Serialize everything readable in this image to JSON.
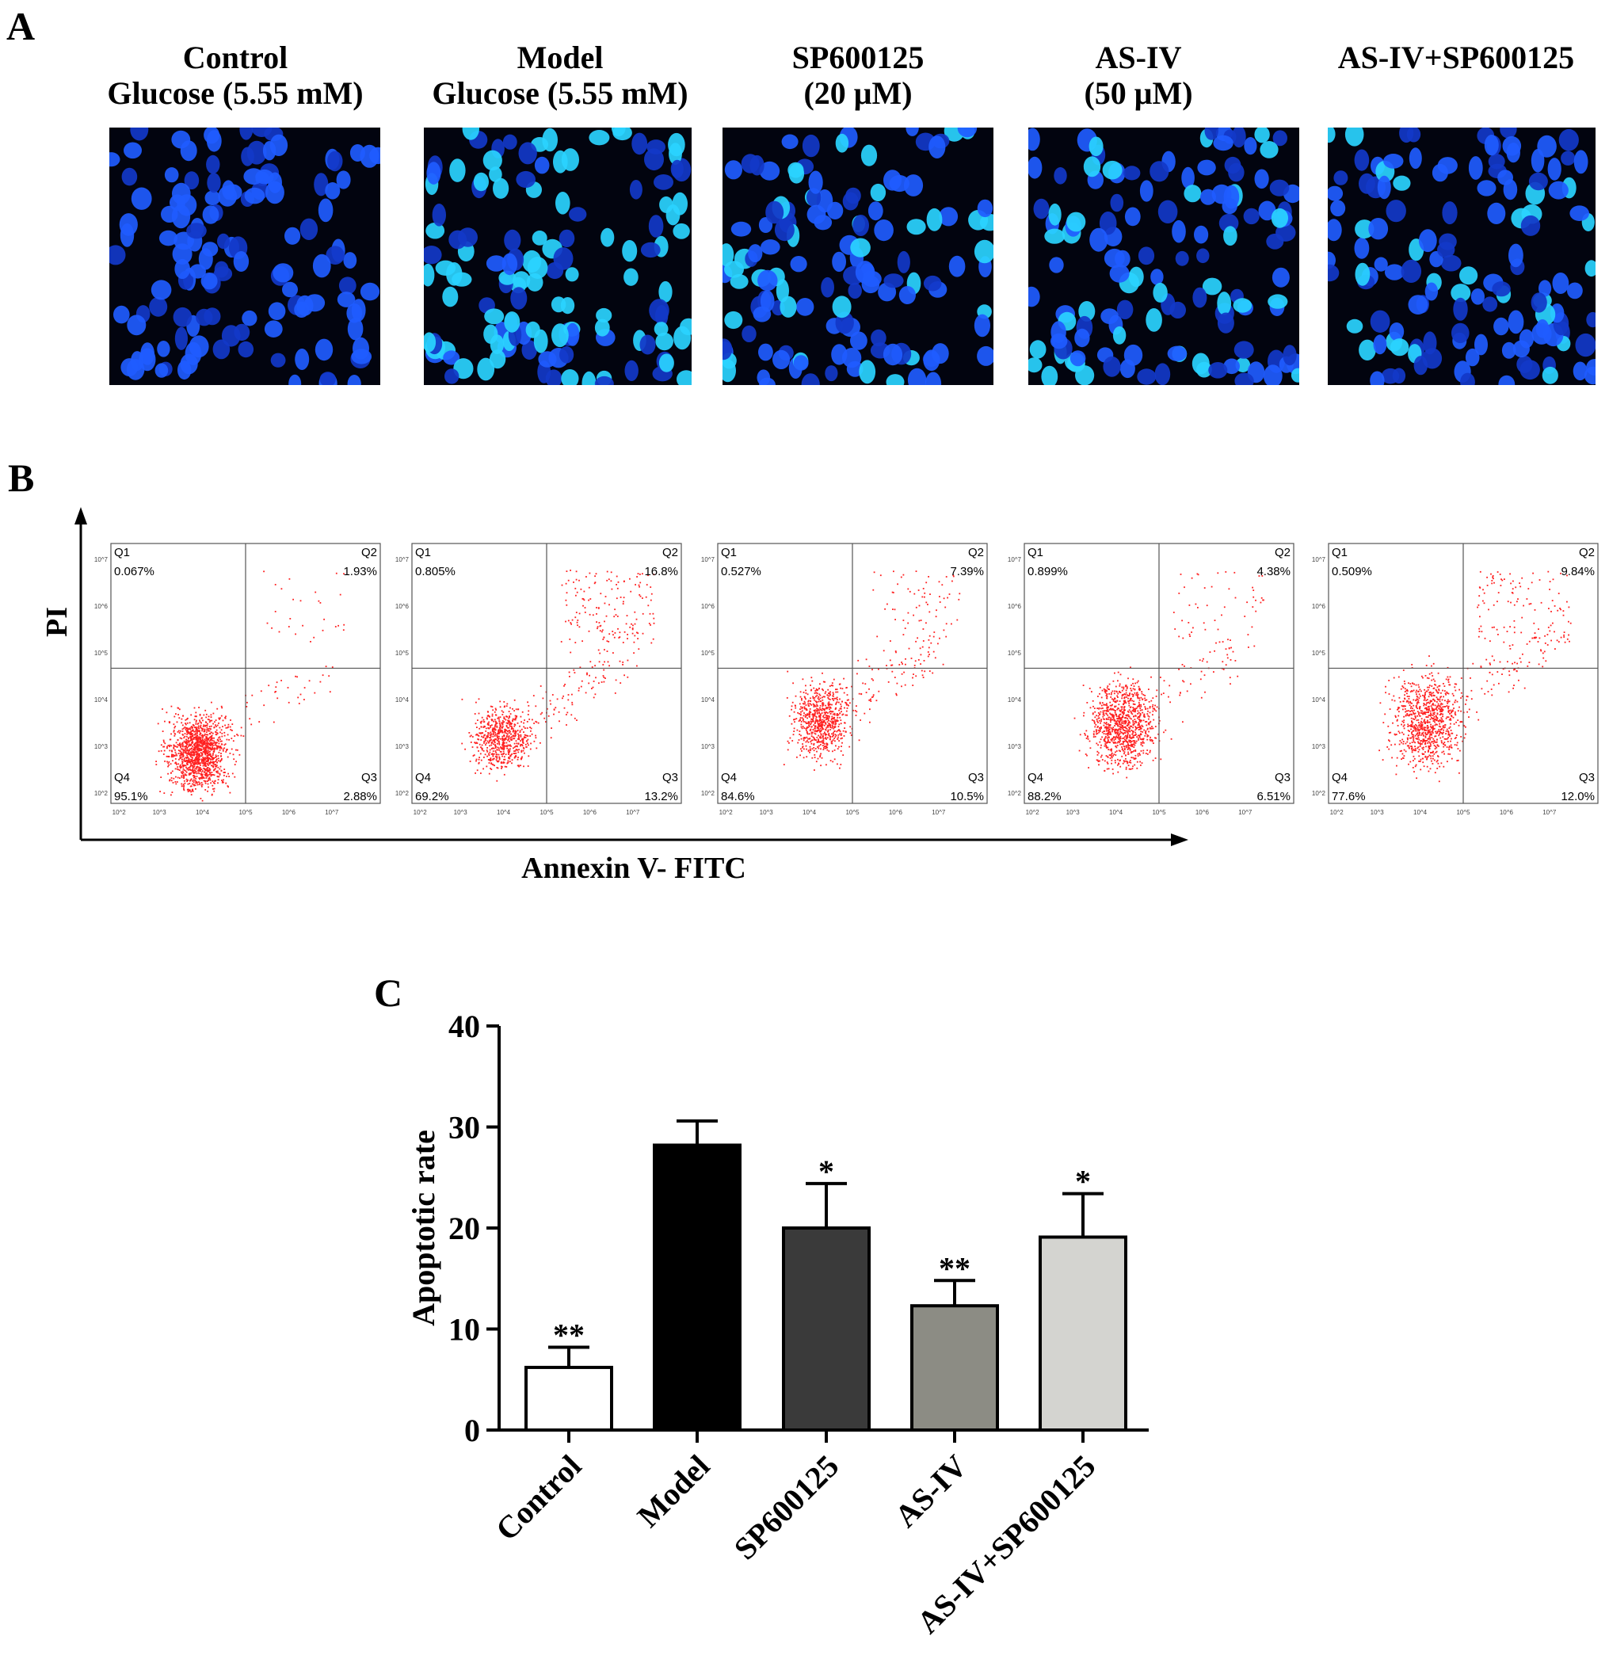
{
  "panel_a": {
    "letter": "A",
    "columns": [
      {
        "line1": "Control",
        "line2": "Glucose (5.55 mM)"
      },
      {
        "line1": "Model",
        "line2": "Glucose (5.55 mM)"
      },
      {
        "line1": "SP600125",
        "line2": "(20 μM)"
      },
      {
        "line1": "AS-IV",
        "line2": "(50 μM)"
      },
      {
        "line1": "AS-IV+SP600125",
        "line2": ""
      }
    ]
  },
  "panel_b": {
    "letter": "B",
    "y_axis_label": "PI",
    "x_axis_label": "Annexin V- FITC",
    "plots": [
      {
        "q1_label": "Q1",
        "q1": "0.067%",
        "q2_label": "Q2",
        "q2": "1.93%",
        "q3_label": "Q3",
        "q3": "2.88%",
        "q4_label": "Q4",
        "q4": "95.1%"
      },
      {
        "q1_label": "Q1",
        "q1": "0.805%",
        "q2_label": "Q2",
        "q2": "16.8%",
        "q3_label": "Q3",
        "q3": "13.2%",
        "q4_label": "Q4",
        "q4": "69.2%"
      },
      {
        "q1_label": "Q1",
        "q1": "0.527%",
        "q2_label": "Q2",
        "q2": "7.39%",
        "q3_label": "Q3",
        "q3": "10.5%",
        "q4_label": "Q4",
        "q4": "84.6%"
      },
      {
        "q1_label": "Q1",
        "q1": "0.899%",
        "q2_label": "Q2",
        "q2": "4.38%",
        "q3_label": "Q3",
        "q3": "6.51%",
        "q4_label": "Q4",
        "q4": "88.2%"
      },
      {
        "q1_label": "Q1",
        "q1": "0.509%",
        "q2_label": "Q2",
        "q2": "9.84%",
        "q3_label": "Q3",
        "q3": "12.0%",
        "q4_label": "Q4",
        "q4": "77.6%"
      }
    ],
    "tick_labels": [
      "10^2",
      "10^3",
      "10^4",
      "10^5",
      "10^6",
      "10^7"
    ]
  },
  "panel_c": {
    "letter": "C"
  },
  "colors": {
    "dot_red": "#ff2020",
    "nucleus_blue": "#1f5cff",
    "nucleus_cyan": "#2ad4ff"
  },
  "chart_data": {
    "type": "bar",
    "title": "",
    "xlabel": "",
    "ylabel": "Apoptotic rate",
    "ylim": [
      0,
      40
    ],
    "yticks": [
      0,
      10,
      20,
      30,
      40
    ],
    "categories": [
      "Control",
      "Model",
      "SP600125",
      "AS-IV",
      "AS-IV+SP600125"
    ],
    "values": [
      6.2,
      28.2,
      20.0,
      12.3,
      19.1
    ],
    "errors": [
      2.0,
      2.4,
      4.4,
      2.5,
      4.3
    ],
    "significance": [
      "**",
      "",
      "*",
      "**",
      "*"
    ],
    "bar_colors": [
      "#ffffff",
      "#000000",
      "#3a3a3a",
      "#8c8c84",
      "#d4d4d0"
    ],
    "grid": false,
    "legend": "none"
  }
}
